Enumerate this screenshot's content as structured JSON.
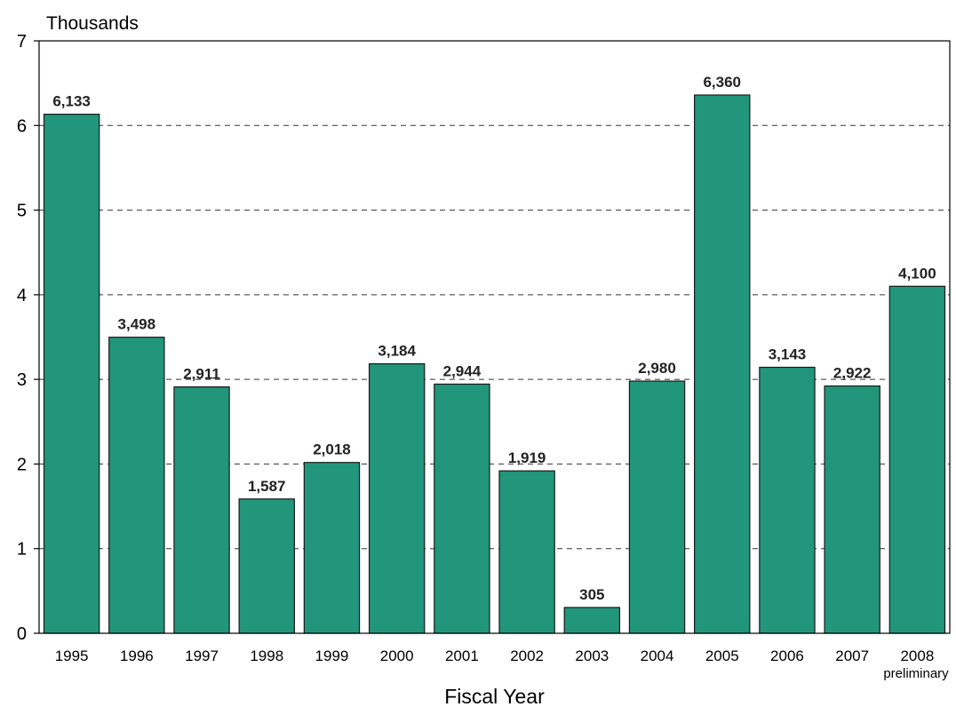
{
  "chart_data": {
    "type": "bar",
    "categories": [
      "1995",
      "1996",
      "1997",
      "1998",
      "1999",
      "2000",
      "2001",
      "2002",
      "2003",
      "2004",
      "2005",
      "2006",
      "2007",
      "2008"
    ],
    "category_sublabels": [
      "",
      "",
      "",
      "",
      "",
      "",
      "",
      "",
      "",
      "",
      "",
      "",
      "",
      "preliminary"
    ],
    "values": [
      6133,
      3498,
      2911,
      1587,
      2018,
      3184,
      2944,
      1919,
      305,
      2980,
      6360,
      3143,
      2922,
      4100
    ],
    "data_labels": [
      "6,133",
      "3,498",
      "2,911",
      "1,587",
      "2,018",
      "3,184",
      "2,944",
      "1,919",
      "305",
      "2,980",
      "6,360",
      "3,143",
      "2,922",
      "4,100"
    ],
    "unit_label": "Thousands",
    "xlabel": "Fiscal Year",
    "ylabel": "",
    "ylim": [
      0,
      7000
    ],
    "y_ticks": [
      0,
      1000,
      2000,
      3000,
      4000,
      5000,
      6000,
      7000
    ],
    "y_tick_labels": [
      "0",
      "1",
      "2",
      "3",
      "4",
      "5",
      "6",
      "7"
    ],
    "grid": "dashed horizontal",
    "bar_color": "#21967a",
    "bar_edge_color": "#1a1a1a"
  }
}
